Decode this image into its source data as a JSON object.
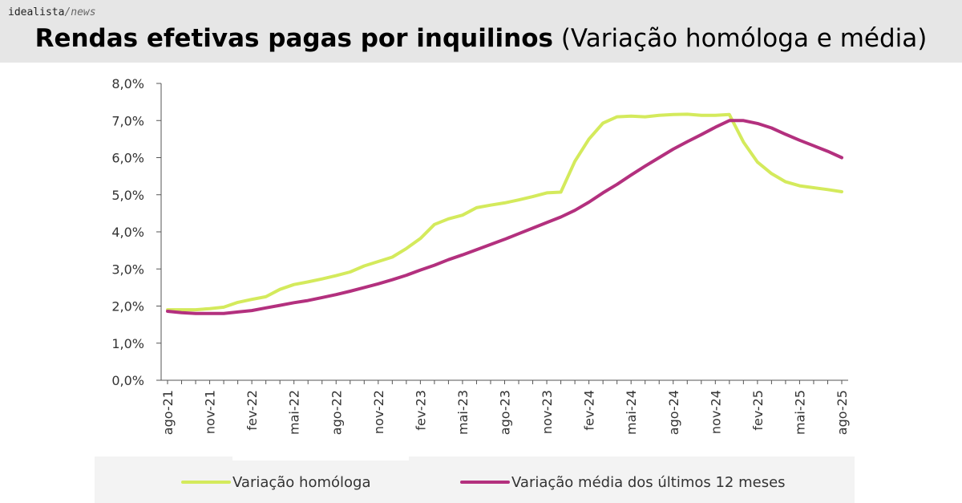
{
  "brand": {
    "name": "idealista",
    "separator": "/",
    "section": "news"
  },
  "title": {
    "bold": "Rendas efetivas pagas por inquilinos",
    "normal": "(Variação homóloga e média)"
  },
  "colors": {
    "series_homologa": "#d4ea5c",
    "series_media": "#b3307e",
    "axis": "#555555",
    "header_bg": "#e6e6e6"
  },
  "chart_data": {
    "type": "line",
    "x": [
      "ago-21",
      "set-21",
      "out-21",
      "nov-21",
      "dez-21",
      "jan-22",
      "fev-22",
      "mar-22",
      "abr-22",
      "mai-22",
      "jun-22",
      "jul-22",
      "ago-22",
      "set-22",
      "out-22",
      "nov-22",
      "dez-22",
      "jan-23",
      "fev-23",
      "mar-23",
      "abr-23",
      "mai-23",
      "jun-23",
      "jul-23",
      "ago-23",
      "set-23",
      "out-23",
      "nov-23",
      "dez-23",
      "jan-24",
      "fev-24",
      "mar-24",
      "abr-24",
      "mai-24",
      "jun-24",
      "jul-24",
      "ago-24",
      "set-24",
      "out-24",
      "nov-24",
      "dez-24",
      "jan-25",
      "fev-25",
      "mar-25",
      "abr-25",
      "mai-25",
      "jun-25",
      "jul-25",
      "ago-25"
    ],
    "tick_labels": [
      "ago-21",
      "nov-21",
      "fev-22",
      "mai-22",
      "ago-22",
      "nov-22",
      "fev-23",
      "mai-23",
      "ago-23",
      "nov-23",
      "fev-24",
      "mai-24",
      "ago-24",
      "nov-24",
      "fev-25",
      "mai-25",
      "ago-25"
    ],
    "y_ticks": [
      "0,0%",
      "1,0%",
      "2,0%",
      "3,0%",
      "4,0%",
      "5,0%",
      "6,0%",
      "7,0%",
      "8,0%"
    ],
    "ylim": [
      0,
      8
    ],
    "grid": false,
    "legend_position": "bottom",
    "series": [
      {
        "name": "Variação homóloga",
        "values": [
          1.9,
          1.9,
          1.9,
          1.93,
          1.97,
          2.1,
          2.18,
          2.25,
          2.45,
          2.58,
          2.65,
          2.73,
          2.82,
          2.92,
          3.08,
          3.2,
          3.32,
          3.55,
          3.82,
          4.2,
          4.35,
          4.45,
          4.65,
          4.72,
          4.78,
          4.86,
          4.95,
          5.05,
          5.07,
          5.9,
          6.5,
          6.93,
          7.1,
          7.12,
          7.1,
          7.14,
          7.16,
          7.17,
          7.14,
          7.14,
          7.16,
          6.42,
          5.88,
          5.57,
          5.35,
          5.24,
          5.19,
          5.14,
          5.08
        ]
      },
      {
        "name": "Variação média dos últimos 12 meses",
        "values": [
          1.86,
          1.82,
          1.8,
          1.8,
          1.8,
          1.84,
          1.88,
          1.95,
          2.02,
          2.09,
          2.15,
          2.23,
          2.31,
          2.4,
          2.5,
          2.6,
          2.71,
          2.83,
          2.97,
          3.1,
          3.25,
          3.38,
          3.52,
          3.66,
          3.8,
          3.95,
          4.1,
          4.25,
          4.4,
          4.58,
          4.8,
          5.05,
          5.28,
          5.53,
          5.77,
          6.0,
          6.23,
          6.43,
          6.62,
          6.82,
          7.0,
          7.0,
          6.92,
          6.8,
          6.63,
          6.47,
          6.32,
          6.17,
          6.0
        ]
      }
    ]
  }
}
